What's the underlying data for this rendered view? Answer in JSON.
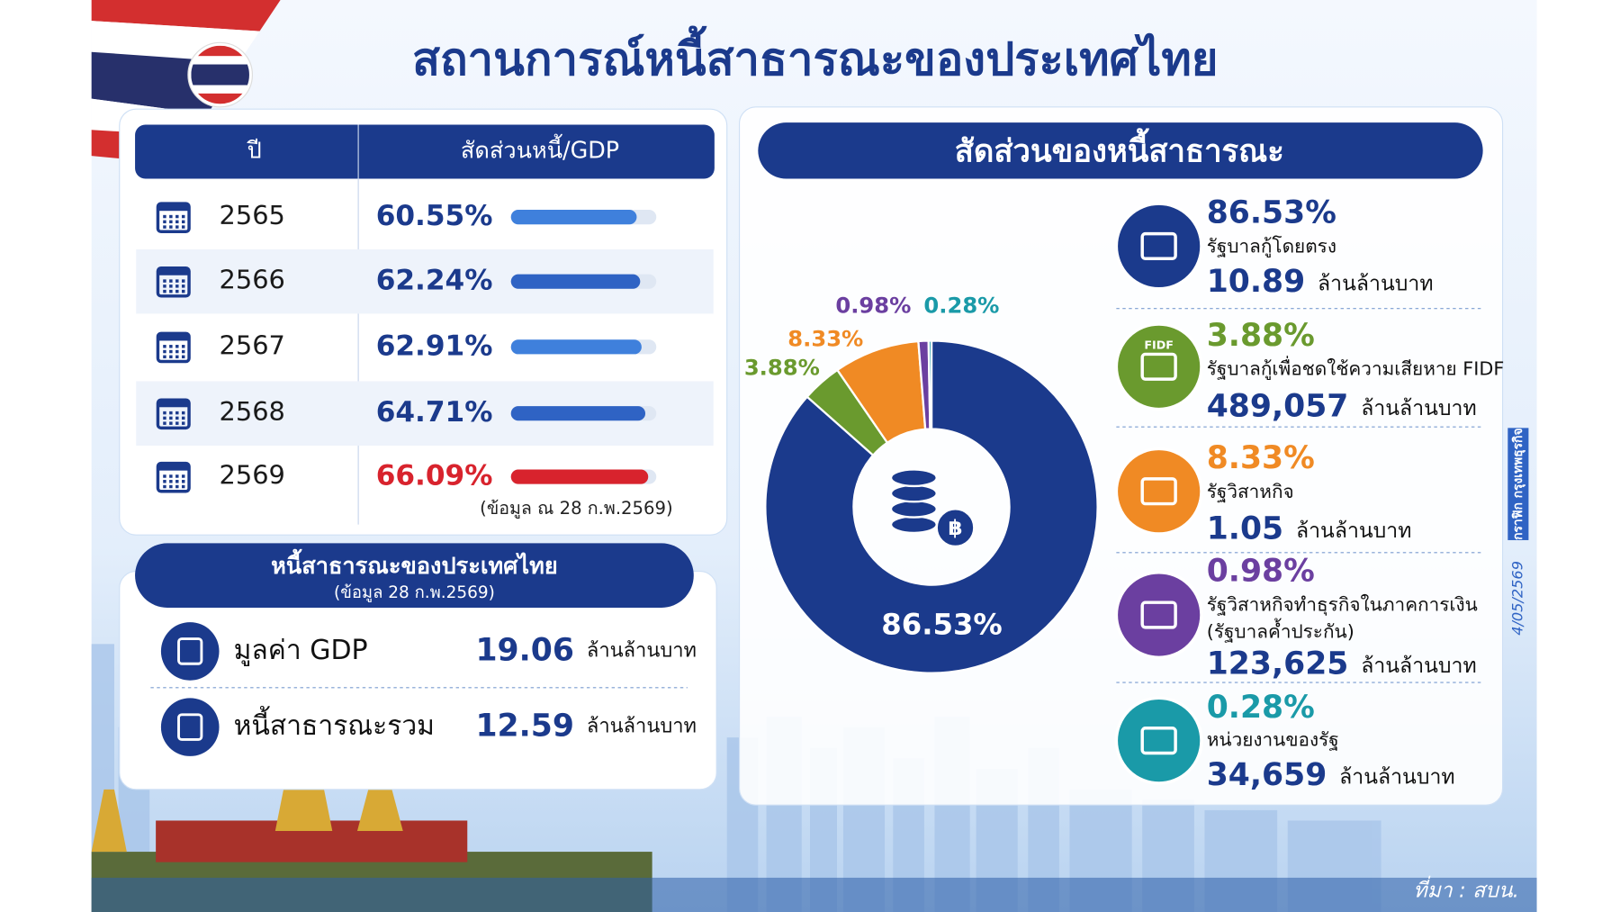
{
  "title": "สถานการณ์หนี้สาธารณะของประเทศไทย",
  "chart_data": [
    {
      "type": "bar",
      "headers": [
        "ปี",
        "สัดส่วนหนี้/GDP"
      ],
      "categories": [
        "2565",
        "2566",
        "2567",
        "2568",
        "2569"
      ],
      "values": [
        60.55,
        62.24,
        62.91,
        64.71,
        66.09
      ],
      "value_labels": [
        "60.55%",
        "62.24%",
        "62.91%",
        "64.71%",
        "66.09%"
      ],
      "colors": [
        "#3f80dc",
        "#2f63c4",
        "#3f80dc",
        "#2f63c4",
        "#d8232d"
      ],
      "label_colors": [
        "#1b3a8c",
        "#1b3a8c",
        "#1b3a8c",
        "#1b3a8c",
        "#d8232d"
      ],
      "xlim": [
        0,
        70
      ],
      "note": "(ข้อมูล ณ 28 ก.พ.2569)"
    },
    {
      "type": "pie",
      "title": "สัดส่วนของหนี้สาธารณะ",
      "categories": [
        "รัฐบาลกู้โดยตรง",
        "รัฐบาลกู้เพื่อชดใช้ความเสียหาย FIDF",
        "รัฐวิสาหกิจ",
        "รัฐวิสาหกิจทำธุรกิจในภาคการเงิน",
        "หน่วยงานของรัฐ"
      ],
      "guarantee_note": "(รัฐบาลค้ำประกัน)",
      "values": [
        86.53,
        3.88,
        8.33,
        0.98,
        0.28
      ],
      "value_labels": [
        "86.53%",
        "3.88%",
        "8.33%",
        "0.98%",
        "0.28%"
      ],
      "colors": [
        "#1b3a8c",
        "#6a9a2e",
        "#f08a24",
        "#6b3fa0",
        "#1a9aa8"
      ],
      "amounts": [
        "10.89",
        "489,057",
        "1.05",
        "123,625",
        "34,659"
      ],
      "unit": "ล้านล้านบาท",
      "icon_labels": {
        "fidf": "FIDF"
      }
    }
  ],
  "summary": {
    "title": "หนี้สาธารณะของประเทศไทย",
    "subtitle": "(ข้อมูล 28 ก.พ.2569)",
    "rows": [
      {
        "label": "มูลค่า GDP",
        "value": "19.06",
        "unit": "ล้านล้านบาท"
      },
      {
        "label": "หนี้สาธารณะรวม",
        "value": "12.59",
        "unit": "ล้านล้านบาท"
      }
    ]
  },
  "date": "4/05/2569",
  "credit": "กราฟิก กรุงเทพธุรกิจ",
  "source": "ที่มา : สบน."
}
